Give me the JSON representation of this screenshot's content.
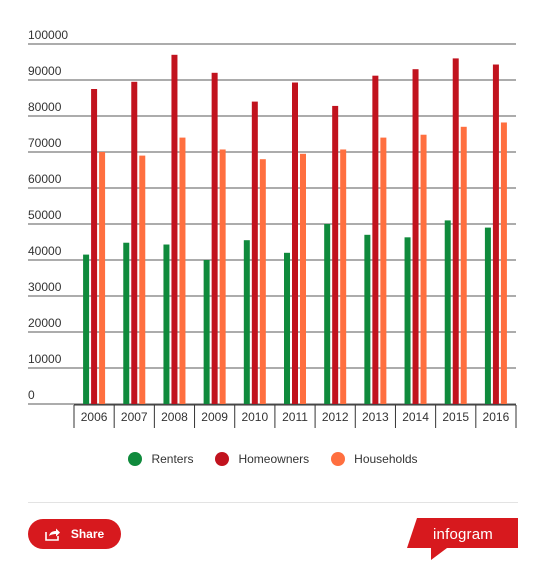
{
  "chart_data": {
    "type": "bar",
    "categories": [
      "2006",
      "2007",
      "2008",
      "2009",
      "2010",
      "2011",
      "2012",
      "2013",
      "2014",
      "2015",
      "2016"
    ],
    "series": [
      {
        "name": "Renters",
        "color": "#0f8a3c",
        "values": [
          41500,
          44800,
          44300,
          40000,
          45500,
          42000,
          50000,
          47000,
          46300,
          51000,
          49000
        ]
      },
      {
        "name": "Homeowners",
        "color": "#c1131e",
        "values": [
          87500,
          89500,
          97000,
          92000,
          84000,
          89300,
          82800,
          91200,
          93000,
          96000,
          94300
        ]
      },
      {
        "name": "Households",
        "color": "#ff6f3f",
        "values": [
          70000,
          69000,
          74000,
          70700,
          68000,
          69500,
          70700,
          74000,
          74800,
          77000,
          78200
        ]
      }
    ],
    "y_ticks": [
      "0",
      "10000",
      "20000",
      "30000",
      "40000",
      "50000",
      "60000",
      "70000",
      "80000",
      "90000",
      "100000"
    ],
    "ylim": [
      0,
      100000
    ],
    "grid": true,
    "legend_position": "bottom"
  },
  "footer": {
    "share_label": "Share",
    "brand_label": "infogram",
    "brand_color": "#d7191e",
    "share_icon": "share-icon"
  }
}
